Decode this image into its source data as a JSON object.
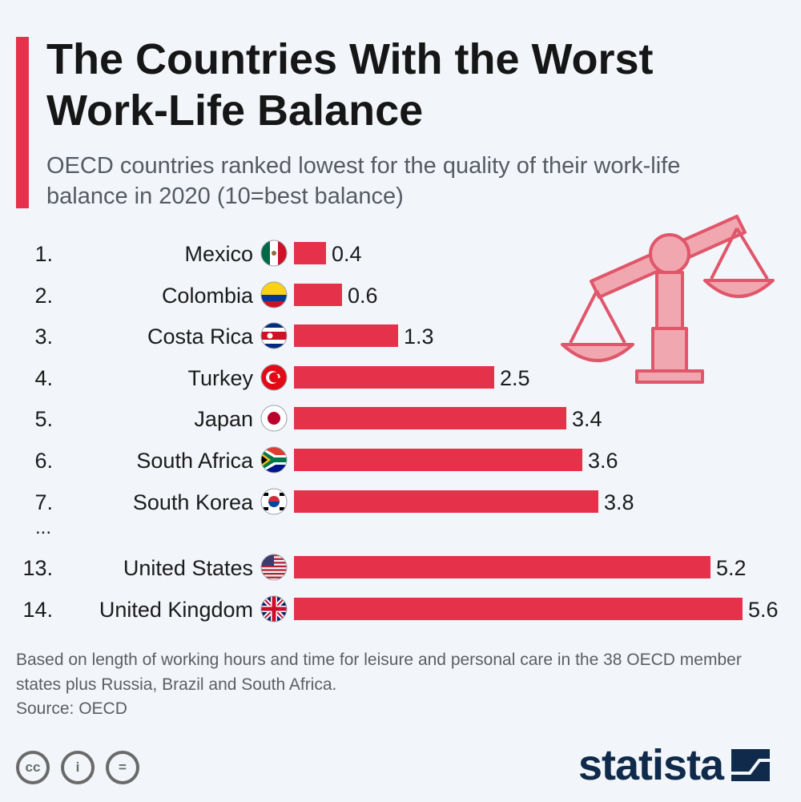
{
  "header": {
    "title": "The Countries With the Worst Work-Life Balance",
    "subtitle": "OECD countries ranked lowest for the quality of their work-life balance in 2020 (10=best balance)"
  },
  "chart_data": {
    "type": "bar",
    "orientation": "horizontal",
    "ranks": [
      "1.",
      "2.",
      "3.",
      "4.",
      "5.",
      "6.",
      "7.",
      "13.",
      "14."
    ],
    "categories": [
      "Mexico",
      "Colombia",
      "Costa Rica",
      "Turkey",
      "Japan",
      "South Africa",
      "South Korea",
      "United States",
      "United Kingdom"
    ],
    "values": [
      0.4,
      0.6,
      1.3,
      2.5,
      3.4,
      3.6,
      3.8,
      5.2,
      5.6
    ],
    "value_labels": [
      "0.4",
      "0.6",
      "1.3",
      "2.5",
      "3.4",
      "3.6",
      "3.8",
      "5.2",
      "5.6"
    ],
    "ellipsis": "...",
    "xlim": [
      0,
      6
    ],
    "bar_color": "#e5324a",
    "grid": false,
    "legend": "none"
  },
  "flags": [
    "mexico-flag-icon",
    "colombia-flag-icon",
    "costa-rica-flag-icon",
    "turkey-flag-icon",
    "japan-flag-icon",
    "south-africa-flag-icon",
    "south-korea-flag-icon",
    "united-states-flag-icon",
    "united-kingdom-flag-icon"
  ],
  "illustration": "balance-scale-icon",
  "footer": {
    "note": "Based on length of working hours and time for leisure and personal care in the 38 OECD member states plus Russia, Brazil and South Africa.",
    "source": "Source: OECD",
    "license_icons": [
      "cc",
      "i",
      "="
    ],
    "brand": "statista"
  }
}
